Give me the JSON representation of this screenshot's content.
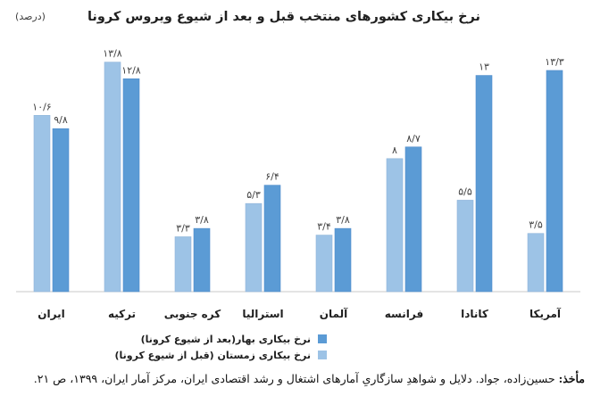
{
  "colors": {
    "before": "#9dc3e6",
    "after": "#5b9bd5",
    "axis": "#c8c8c8",
    "text": "#404040",
    "title": "#1f1f1f"
  },
  "chart_data": {
    "type": "bar",
    "title": "نرخ بیکاری کشورهای منتخب قبل و بعد از شیوع ویروس کرونا",
    "unit": "(درصد)",
    "direction": "rtl",
    "categories": [
      "آمریکا",
      "کانادا",
      "فرانسه",
      "آلمان",
      "استرالیا",
      "کره جنوبی",
      "ترکیه",
      "ایران"
    ],
    "series": [
      {
        "name": "نرخ بیکاری زمستان (قبل از شیوع کرونا)",
        "values": [
          3.5,
          5.5,
          8.0,
          3.4,
          5.3,
          3.3,
          13.8,
          10.6
        ],
        "labels": [
          "۳/۵",
          "۵/۵",
          "۸",
          "۳/۴",
          "۵/۳",
          "۳/۳",
          "۱۳/۸",
          "۱۰/۶"
        ]
      },
      {
        "name": "نرخ بیکاری بهار(بعد از شیوع کرونا)",
        "values": [
          13.3,
          13.0,
          8.7,
          3.8,
          6.4,
          3.8,
          12.8,
          9.8
        ],
        "labels": [
          "۱۳/۳",
          "۱۳",
          "۸/۷",
          "۳/۸",
          "۶/۴",
          "۳/۸",
          "۱۲/۸",
          "۹/۸"
        ]
      }
    ],
    "ylim": [
      0,
      15
    ],
    "grid": false,
    "legend": "bottom"
  },
  "caption": {
    "label": "مأخذ:",
    "text": "حسین‌زاده، جواد. دلایل و شواهدِ سازگاریِ آمارهای اشتغال و رشد اقتصادی ایران، مرکز آمار ایران، ۱۳۹۹، ص ۲۱."
  }
}
